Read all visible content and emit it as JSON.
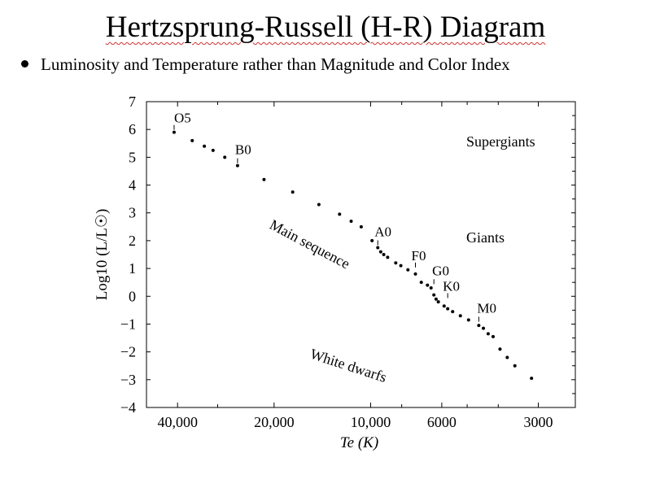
{
  "slide": {
    "title": "Hertzsprung-Russell (H-R) Diagram",
    "bullet": "Luminosity and Temperature rather than Magnitude and Color Index"
  },
  "chart_data": {
    "type": "scatter",
    "title": "",
    "xlabel": "Te (K)",
    "ylabel": "Log10 (L/L☉)",
    "x_scale": "log, reversed (temperature decreases to the right)",
    "xlim": [
      50000,
      2300
    ],
    "ylim": [
      -4,
      7
    ],
    "x_ticks": [
      {
        "value": 40000,
        "label": "40,000"
      },
      {
        "value": 20000,
        "label": "20,000"
      },
      {
        "value": 10000,
        "label": "10,000"
      },
      {
        "value": 6000,
        "label": "6000"
      },
      {
        "value": 3000,
        "label": "3000"
      }
    ],
    "y_ticks": [
      "7",
      "6",
      "5",
      "4",
      "3",
      "2",
      "1",
      "0",
      "−1",
      "−2",
      "−3",
      "−4"
    ],
    "grid": false,
    "series": [
      {
        "points": [
          {
            "x": 41000,
            "y": 5.9
          },
          {
            "x": 36000,
            "y": 5.6
          },
          {
            "x": 33000,
            "y": 5.4
          },
          {
            "x": 31000,
            "y": 5.25
          },
          {
            "x": 28500,
            "y": 5.0
          },
          {
            "x": 26000,
            "y": 4.7
          },
          {
            "x": 21500,
            "y": 4.2
          },
          {
            "x": 17500,
            "y": 3.75
          },
          {
            "x": 14500,
            "y": 3.3
          },
          {
            "x": 12500,
            "y": 2.95
          },
          {
            "x": 11500,
            "y": 2.7
          },
          {
            "x": 10700,
            "y": 2.5
          },
          {
            "x": 9900,
            "y": 2.0
          },
          {
            "x": 9500,
            "y": 1.75
          },
          {
            "x": 9300,
            "y": 1.6
          },
          {
            "x": 9100,
            "y": 1.5
          },
          {
            "x": 8850,
            "y": 1.4
          },
          {
            "x": 8350,
            "y": 1.2
          },
          {
            "x": 8050,
            "y": 1.1
          },
          {
            "x": 7650,
            "y": 0.95
          },
          {
            "x": 7250,
            "y": 0.8
          },
          {
            "x": 6950,
            "y": 0.5
          },
          {
            "x": 6650,
            "y": 0.4
          },
          {
            "x": 6480,
            "y": 0.3
          },
          {
            "x": 6350,
            "y": 0.05
          },
          {
            "x": 6250,
            "y": -0.1
          },
          {
            "x": 6150,
            "y": -0.2
          },
          {
            "x": 5900,
            "y": -0.35
          },
          {
            "x": 5750,
            "y": -0.45
          },
          {
            "x": 5550,
            "y": -0.55
          },
          {
            "x": 5250,
            "y": -0.7
          },
          {
            "x": 4950,
            "y": -0.85
          },
          {
            "x": 4600,
            "y": -1.05
          },
          {
            "x": 4450,
            "y": -1.15
          },
          {
            "x": 4300,
            "y": -1.35
          },
          {
            "x": 4150,
            "y": -1.45
          },
          {
            "x": 3950,
            "y": -1.9
          },
          {
            "x": 3750,
            "y": -2.2
          },
          {
            "x": 3550,
            "y": -2.5
          },
          {
            "x": 3150,
            "y": -2.95
          }
        ]
      }
    ],
    "spectral_labels": [
      {
        "text": "O5",
        "x": 41000,
        "y": 5.9
      },
      {
        "text": "B0",
        "x": 26000,
        "y": 4.7
      },
      {
        "text": "A0",
        "x": 9500,
        "y": 1.75
      },
      {
        "text": "F0",
        "x": 7250,
        "y": 0.95
      },
      {
        "text": "G0",
        "x": 6350,
        "y": 0.35
      },
      {
        "text": "K0",
        "x": 5750,
        "y": -0.15
      },
      {
        "text": "M0",
        "x": 4600,
        "y": -1.0
      }
    ],
    "annotations": [
      {
        "text": "Supergiants"
      },
      {
        "text": "Giants"
      },
      {
        "text": "Main sequence"
      },
      {
        "text": "White dwarfs"
      }
    ]
  }
}
